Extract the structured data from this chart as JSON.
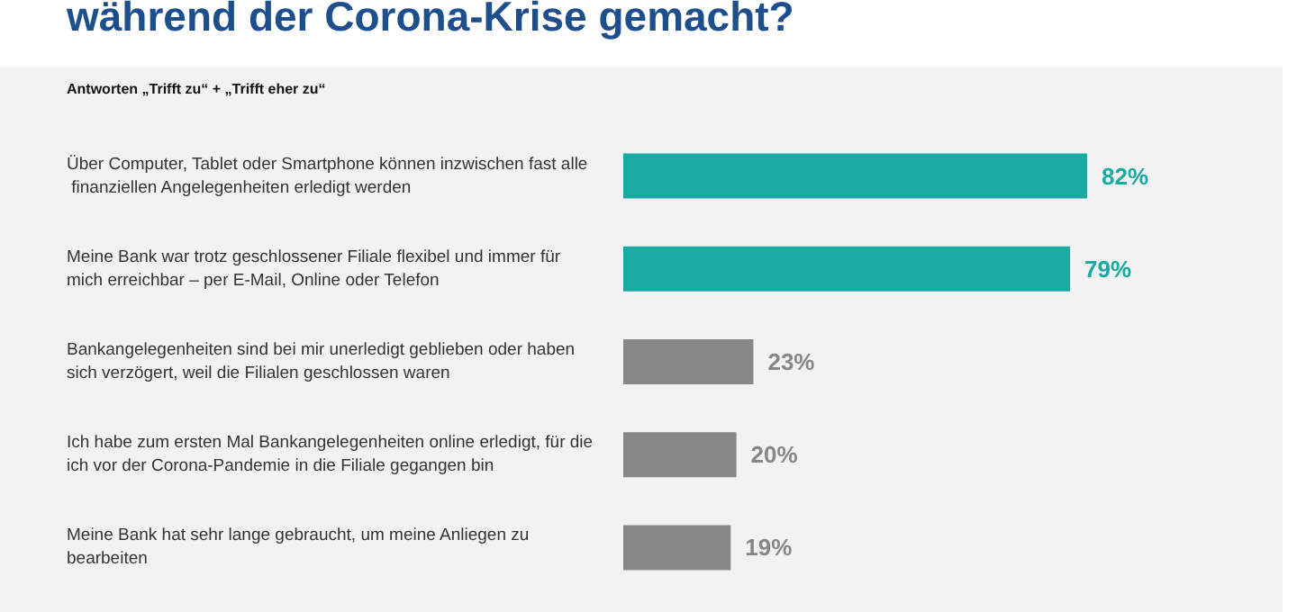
{
  "chart_data": {
    "type": "bar",
    "orientation": "horizontal",
    "title": "während der Corona-Krise gemacht?",
    "subtitle": "Antworten „Trifft zu“ + „Trifft eher zu“",
    "categories": [
      "Über Computer, Tablet oder Smartphone können inzwischen fast alle finanziellen Angelegenheiten erledigt werden",
      "Meine Bank war trotz geschlossener Filiale flexibel und immer für mich erreichbar – per E-Mail, Online oder Telefon",
      "Bankangelegenheiten sind bei mir unerledigt geblieben oder haben sich verzögert, weil die Filialen geschlossen waren",
      "Ich habe zum ersten Mal Bankangelegenheiten online erledigt, für die ich vor der Corona-Pandemie in die Filiale gegangen bin",
      "Meine Bank hat sehr lange gebraucht, um meine Anliegen zu bearbeiten"
    ],
    "values": [
      82,
      79,
      23,
      20,
      19
    ],
    "value_labels": [
      "82%",
      "79%",
      "23%",
      "20%",
      "19%"
    ],
    "colors": [
      "#19aaa4",
      "#19aaa4",
      "#878787",
      "#878787",
      "#878787"
    ],
    "tick_labels": "y"
  }
}
